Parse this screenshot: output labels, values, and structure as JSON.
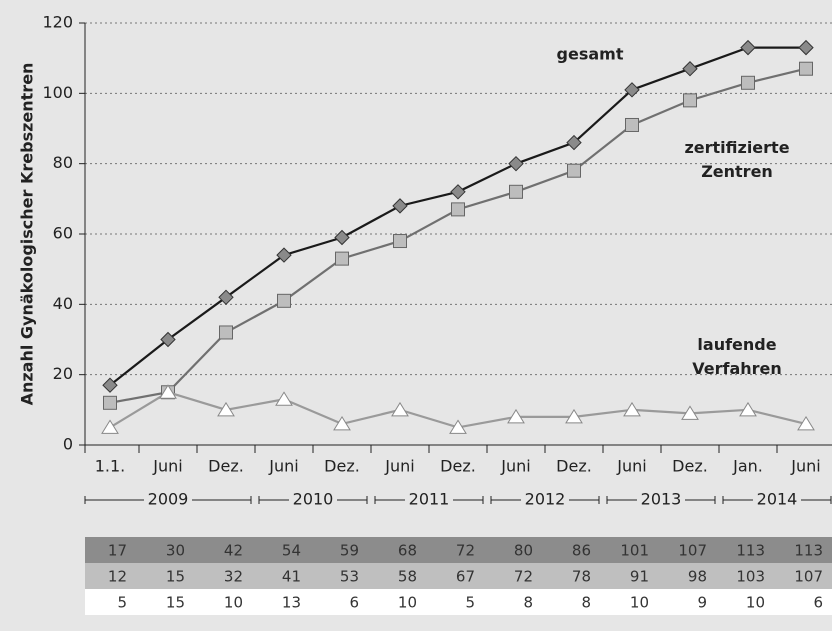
{
  "chart_data": {
    "type": "line",
    "y_label": "Anzahl Gynäkologischer Krebszentren",
    "categories": [
      "1.1.",
      "Juni",
      "Dez.",
      "Juni",
      "Dez.",
      "Juni",
      "Dez.",
      "Juni",
      "Dez.",
      "Juni",
      "Dez.",
      "Jan.",
      "Juni"
    ],
    "years": [
      "2009",
      "2010",
      "2011",
      "2012",
      "2013",
      "2014"
    ],
    "series": [
      {
        "name": "gesamt",
        "color": "#1a1a1a",
        "marker_color": "#8a8a8a",
        "marker": "diamond",
        "row_color": "#8c8c8c",
        "values": [
          17,
          30,
          42,
          54,
          59,
          68,
          72,
          80,
          86,
          101,
          107,
          113,
          113
        ]
      },
      {
        "name": "zertifizierte Zentren",
        "color": "#707070",
        "marker_color": "#bdbdbd",
        "marker": "square",
        "row_color": "#bfbfbf",
        "values": [
          12,
          15,
          32,
          41,
          53,
          58,
          67,
          72,
          78,
          91,
          98,
          103,
          107
        ]
      },
      {
        "name": "laufende Verfahren",
        "color": "#9a9a9a",
        "marker_color": "#ffffff",
        "marker": "triangle",
        "row_color": "#ffffff",
        "values": [
          5,
          15,
          10,
          13,
          6,
          10,
          5,
          8,
          8,
          10,
          9,
          10,
          6
        ]
      }
    ],
    "ylim": [
      0,
      120
    ],
    "yticks": [
      0,
      20,
      40,
      60,
      80,
      100,
      120
    ],
    "grid": true
  }
}
